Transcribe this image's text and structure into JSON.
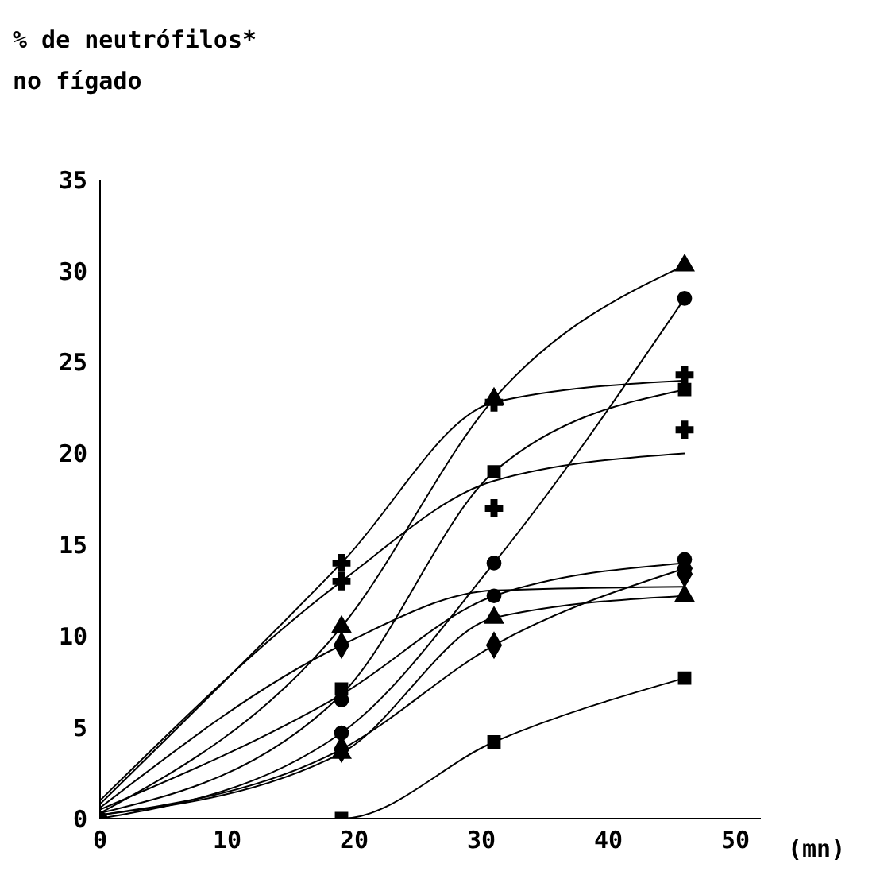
{
  "chart_data": {
    "type": "scatter",
    "title": "% de neutrófilos*\nno fígado",
    "xlabel": "(mn)",
    "xlim": [
      0,
      52
    ],
    "xticks": [
      0,
      10,
      20,
      30,
      40,
      50
    ],
    "ylim": [
      0,
      35
    ],
    "yticks": [
      0,
      5,
      10,
      15,
      20,
      25,
      30,
      35
    ],
    "grid": false,
    "x": [
      19,
      31,
      46
    ],
    "series": [
      {
        "color": "#000000",
        "marker": "circle",
        "x": [
          0
        ],
        "values": [
          0
        ]
      },
      {
        "color": "#000000",
        "marker": "triangle",
        "values": [
          10.5,
          23,
          30.3
        ]
      },
      {
        "color": "#000000",
        "marker": "circle",
        "values": [
          4.7,
          14,
          28.5
        ]
      },
      {
        "color": "#000000",
        "marker": "cross",
        "values": [
          14,
          22.8,
          24.3
        ]
      },
      {
        "color": "#000000",
        "marker": "square",
        "values": [
          7.1,
          19,
          23.5
        ]
      },
      {
        "color": "#000000",
        "marker": "cross",
        "values": [
          13,
          17,
          21.3
        ]
      },
      {
        "color": "#000000",
        "marker": "circle",
        "values": [
          6.5,
          12.2,
          14.2
        ]
      },
      {
        "color": "#000000",
        "marker": "diamond",
        "values": [
          9.5,
          null,
          13.4
        ]
      },
      {
        "color": "#000000",
        "marker": "triangle",
        "values": [
          3.6,
          11,
          12.2
        ]
      },
      {
        "color": "#000000",
        "marker": "diamond",
        "values": [
          3.8,
          9.5,
          13.7
        ]
      },
      {
        "color": "#000000",
        "marker": "square",
        "values": [
          0,
          4.2,
          7.7
        ]
      },
      {
        "type": "line",
        "color": "#000000",
        "marker": "none",
        "x": [
          0,
          19,
          31,
          46
        ],
        "values": [
          0.3,
          10.5,
          23,
          30.3
        ]
      },
      {
        "type": "line",
        "color": "#000000",
        "marker": "none",
        "x": [
          0,
          19,
          31,
          46
        ],
        "values": [
          0,
          4.7,
          14,
          28.5
        ]
      },
      {
        "type": "line",
        "color": "#000000",
        "marker": "none",
        "x": [
          0,
          19,
          31,
          46
        ],
        "values": [
          0.8,
          14,
          22.8,
          24
        ]
      },
      {
        "type": "line",
        "color": "#000000",
        "marker": "none",
        "x": [
          0,
          19,
          31,
          46
        ],
        "values": [
          0.3,
          6.8,
          19,
          23.5
        ]
      },
      {
        "type": "line",
        "color": "#000000",
        "marker": "none",
        "x": [
          0,
          19,
          31,
          46
        ],
        "values": [
          1,
          13,
          18.5,
          20
        ]
      },
      {
        "type": "line",
        "color": "#000000",
        "marker": "none",
        "x": [
          0,
          19,
          31,
          46
        ],
        "values": [
          0.5,
          6.8,
          12.2,
          14
        ]
      },
      {
        "type": "line",
        "color": "#000000",
        "marker": "none",
        "x": [
          0,
          19,
          31,
          46
        ],
        "values": [
          0.6,
          9.5,
          12.5,
          12.7
        ]
      },
      {
        "type": "line",
        "color": "#000000",
        "marker": "none",
        "x": [
          0,
          19,
          31,
          46
        ],
        "values": [
          0.2,
          3.6,
          11,
          12.2
        ]
      },
      {
        "type": "line",
        "color": "#000000",
        "marker": "none",
        "x": [
          0,
          19,
          31,
          46
        ],
        "values": [
          0.2,
          3.8,
          9.5,
          13.7
        ]
      },
      {
        "type": "line",
        "color": "#000000",
        "marker": "none",
        "x": [
          0,
          19,
          31,
          46
        ],
        "values": [
          0,
          0,
          4.2,
          7.7
        ]
      }
    ]
  }
}
